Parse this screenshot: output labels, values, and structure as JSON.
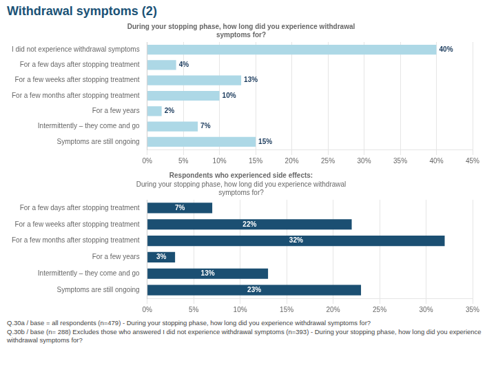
{
  "title": "Withdrawal symptoms (2)",
  "annotations": [
    "Q.30a / base = all respondents (n=479) - During your stopping phase, how long did you experience withdrawal symptoms for?",
    "Q.30b / base (n= 288) Excludes those who answered I did not experience withdrawal symptoms (n=393) - During your stopping phase, how long did you experience withdrawal symptoms for?"
  ],
  "chart_data": [
    {
      "type": "bar",
      "orientation": "horizontal",
      "title": "During your stopping phase, how long did you experience withdrawal\nsymptoms for?",
      "categories": [
        "I did not experience withdrawal symptoms",
        "For a few days after stopping treatment",
        "For a few weeks after stopping treatment",
        "For a few months after stopping treatment",
        "For a few years",
        "Intermittently – they come and go",
        "Symptoms are still ongoing"
      ],
      "values": [
        40,
        4,
        13,
        10,
        2,
        7,
        15
      ],
      "value_labels": [
        "40%",
        "4%",
        "13%",
        "10%",
        "2%",
        "7%",
        "15%"
      ],
      "color": "#add8e6",
      "xlim": [
        0,
        45
      ],
      "xticks": [
        {
          "value": 0,
          "label": "0%"
        },
        {
          "value": 5,
          "label": "5%"
        },
        {
          "value": 10,
          "label": "10%"
        },
        {
          "value": 15,
          "label": "15%"
        },
        {
          "value": 20,
          "label": "20%"
        },
        {
          "value": 25,
          "label": "25%"
        },
        {
          "value": 30,
          "label": "30%"
        },
        {
          "value": 35,
          "label": "35%"
        },
        {
          "value": 40,
          "label": "40%"
        },
        {
          "value": 45,
          "label": "45%"
        }
      ],
      "grid": true,
      "data_labels": true
    },
    {
      "type": "bar",
      "orientation": "horizontal",
      "title": "Respondents who experienced side effects:",
      "subtitle": "During your stopping phase, how long did you experience withdrawal\nsymptoms for?",
      "categories": [
        "For a few days after stopping treatment",
        "For a few weeks after stopping treatment",
        "For a few months after stopping treatment",
        "For a few years",
        "Intermittently – they come and go",
        "Symptoms are still ongoing"
      ],
      "values": [
        7,
        22,
        32,
        3,
        13,
        23
      ],
      "value_labels": [
        "7%",
        "22%",
        "32%",
        "3%",
        "13%",
        "23%"
      ],
      "color": "#1b4f72",
      "xlim": [
        0,
        35
      ],
      "xticks": [
        {
          "value": 0,
          "label": "0%"
        },
        {
          "value": 5,
          "label": "5%"
        },
        {
          "value": 10,
          "label": "10%"
        },
        {
          "value": 15,
          "label": "15%"
        },
        {
          "value": 20,
          "label": "20%"
        },
        {
          "value": 25,
          "label": "25%"
        },
        {
          "value": 30,
          "label": "30%"
        },
        {
          "value": 35,
          "label": "35%"
        }
      ],
      "grid": true,
      "data_labels": true
    }
  ]
}
